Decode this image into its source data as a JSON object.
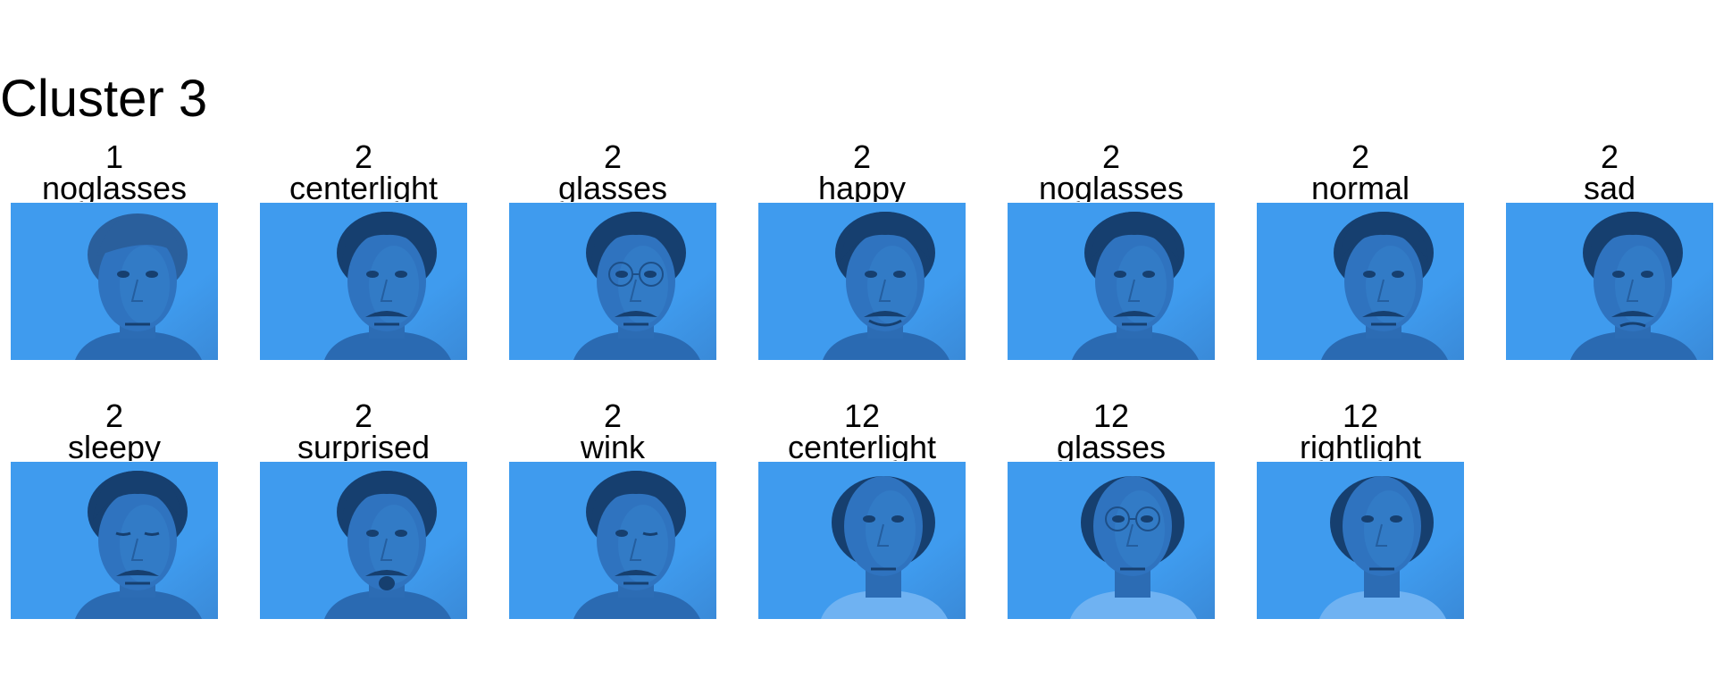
{
  "title": "Cluster 3",
  "tint": "#3f9bee",
  "tint_dark": "#163f6f",
  "faces": [
    {
      "subject": "1",
      "condition": "noglasses"
    },
    {
      "subject": "2",
      "condition": "centerlight"
    },
    {
      "subject": "2",
      "condition": "glasses"
    },
    {
      "subject": "2",
      "condition": "happy"
    },
    {
      "subject": "2",
      "condition": "noglasses"
    },
    {
      "subject": "2",
      "condition": "normal"
    },
    {
      "subject": "2",
      "condition": "sad"
    },
    {
      "subject": "2",
      "condition": "sleepy"
    },
    {
      "subject": "2",
      "condition": "surprised"
    },
    {
      "subject": "2",
      "condition": "wink"
    },
    {
      "subject": "12",
      "condition": "centerlight"
    },
    {
      "subject": "12",
      "condition": "glasses"
    },
    {
      "subject": "12",
      "condition": "rightlight"
    }
  ]
}
